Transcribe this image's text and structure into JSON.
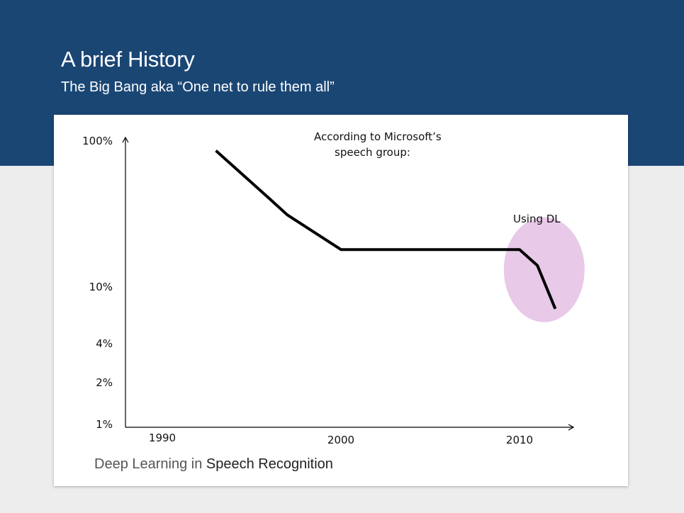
{
  "slide": {
    "title": "A brief History",
    "subtitle": "The Big Bang aka “One net to rule them all”",
    "caption_prefix": "Deep Learning in ",
    "caption_emphasis": "Speech Recognition"
  },
  "colors": {
    "header_bg": "#1a4674",
    "highlight": "#e8c9e8",
    "line": "#000000"
  },
  "chart_data": {
    "type": "line",
    "title": "",
    "xlabel": "",
    "ylabel": "",
    "x_ticks": [
      1990,
      2000,
      2010
    ],
    "x_tick_labels": [
      "1990",
      "2000",
      "2010"
    ],
    "y_scale": "log",
    "y_ticks": [
      1,
      2,
      4,
      10,
      100
    ],
    "y_tick_labels": [
      "1%",
      "2%",
      "4%",
      "10%",
      "100%"
    ],
    "xlim": [
      1988,
      2013
    ],
    "ylim": [
      1,
      100
    ],
    "series": [
      {
        "x": [
          1993,
          1996,
          1997,
          2000,
          2010,
          2011,
          2012
        ],
        "y": [
          85,
          40,
          31,
          18,
          18,
          14,
          7
        ]
      }
    ],
    "annotations": [
      {
        "text_lines": [
          "According to Microsoft’s",
          "speech group:"
        ],
        "x": 2000,
        "y": 100
      },
      {
        "text_lines": [
          "Using DL"
        ],
        "x": 2011,
        "y": 26
      }
    ],
    "highlight": {
      "label": "Using DL",
      "x_center": 2011.3,
      "y_center": 12
    },
    "grid": false,
    "legend": "none"
  }
}
